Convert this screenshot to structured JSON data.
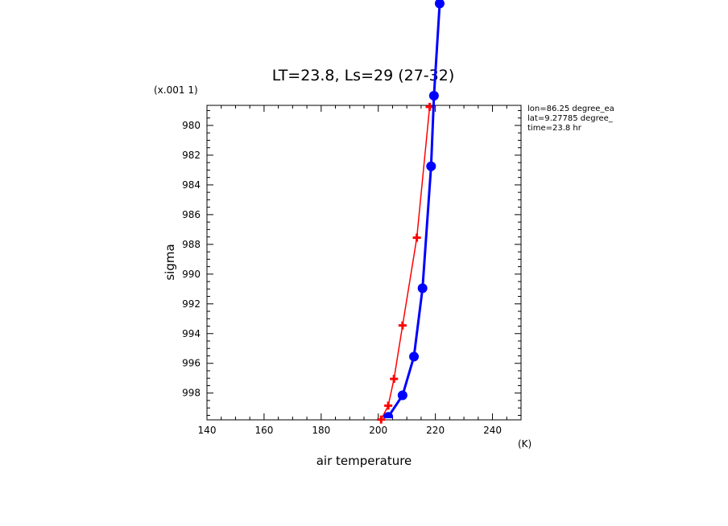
{
  "chart_data": {
    "type": "line",
    "title": "LT=23.8, Ls=29 (27-32)",
    "xlabel": "air temperature",
    "xunit": "(K)",
    "ylabel": "sigma",
    "yscale_label": "(x.001 1)",
    "xlim": [
      140,
      250
    ],
    "ylim": [
      0.97865,
      0.9998
    ],
    "y_inverted": true,
    "x_ticks": [
      140,
      160,
      180,
      200,
      220,
      240
    ],
    "y_ticks": [
      0.98,
      0.982,
      0.984,
      0.986,
      0.988,
      0.99,
      0.992,
      0.994,
      0.996,
      0.998
    ],
    "y_tick_labels": [
      "980",
      "982",
      "984",
      "986",
      "988",
      "990",
      "992",
      "994",
      "996",
      "998"
    ],
    "grid": false,
    "annotations": [
      "lon=86.25 degree_ea",
      "lat=9.27785 degree_",
      "time=23.8 hr"
    ],
    "series": [
      {
        "color": "#ff0000",
        "marker": "plus",
        "x": [
          201.0,
          203.5,
          205.5,
          208.5,
          213.5,
          218.0
        ],
        "y": [
          0.99978,
          0.99885,
          0.99705,
          0.99345,
          0.98755,
          0.97875
        ]
      },
      {
        "color": "#0000ff",
        "marker": "circle",
        "clip_top": true,
        "x": [
          203.5,
          208.5,
          212.5,
          215.5,
          218.5,
          219.5,
          221.5
        ],
        "y": [
          0.9996,
          0.99815,
          0.99555,
          0.99095,
          0.98275,
          0.978,
          0.9718
        ]
      }
    ]
  }
}
